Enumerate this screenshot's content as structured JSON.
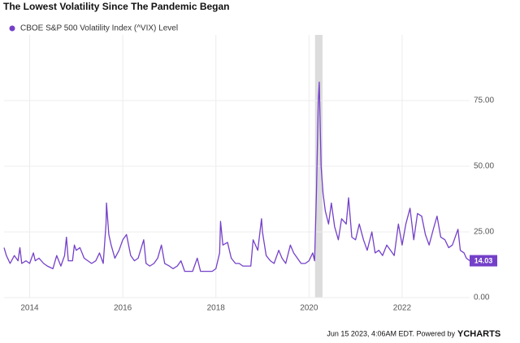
{
  "chart_data": {
    "type": "line",
    "title": "The Lowest Volatility Since The Pandemic Began",
    "x": [
      2013.45,
      2013.5,
      2013.58,
      2013.67,
      2013.75,
      2013.79,
      2013.83,
      2013.92,
      2014.0,
      2014.08,
      2014.12,
      2014.2,
      2014.3,
      2014.38,
      2014.5,
      2014.58,
      2014.67,
      2014.75,
      2014.79,
      2014.83,
      2014.92,
      2014.96,
      2015.0,
      2015.08,
      2015.17,
      2015.25,
      2015.33,
      2015.42,
      2015.5,
      2015.58,
      2015.64,
      2015.65,
      2015.7,
      2015.75,
      2015.83,
      2015.92,
      2016.0,
      2016.08,
      2016.17,
      2016.25,
      2016.33,
      2016.45,
      2016.5,
      2016.58,
      2016.67,
      2016.75,
      2016.83,
      2016.9,
      2017.0,
      2017.08,
      2017.17,
      2017.25,
      2017.33,
      2017.42,
      2017.5,
      2017.6,
      2017.67,
      2017.75,
      2017.83,
      2017.92,
      2018.0,
      2018.08,
      2018.1,
      2018.15,
      2018.25,
      2018.33,
      2018.42,
      2018.5,
      2018.58,
      2018.67,
      2018.75,
      2018.8,
      2018.9,
      2018.98,
      2019.0,
      2019.08,
      2019.17,
      2019.25,
      2019.35,
      2019.42,
      2019.5,
      2019.6,
      2019.67,
      2019.75,
      2019.83,
      2019.92,
      2020.0,
      2020.08,
      2020.12,
      2020.16,
      2020.2,
      2020.22,
      2020.26,
      2020.3,
      2020.35,
      2020.42,
      2020.48,
      2020.55,
      2020.63,
      2020.7,
      2020.8,
      2020.85,
      2020.92,
      2021.0,
      2021.08,
      2021.17,
      2021.25,
      2021.35,
      2021.42,
      2021.5,
      2021.58,
      2021.67,
      2021.75,
      2021.83,
      2021.92,
      2022.0,
      2022.08,
      2022.17,
      2022.25,
      2022.33,
      2022.42,
      2022.5,
      2022.58,
      2022.67,
      2022.75,
      2022.83,
      2022.92,
      2023.0,
      2023.08,
      2023.2,
      2023.25,
      2023.33,
      2023.38,
      2023.45
    ],
    "series": [
      {
        "name": "CBOE S&P 500 Volatility Index (^VIX) Level",
        "color": "#7440c9",
        "values": [
          19,
          16,
          13,
          16,
          14,
          19,
          13,
          14,
          13,
          17,
          14,
          15,
          13,
          12,
          11,
          16,
          12,
          16,
          23,
          14,
          14,
          20,
          18,
          19,
          15,
          14,
          13,
          14,
          17,
          13,
          28,
          36,
          24,
          20,
          15,
          18,
          22,
          24,
          16,
          14,
          15,
          22,
          13,
          12,
          13,
          15,
          20,
          13,
          12,
          11,
          12,
          14,
          10,
          10,
          10,
          15,
          10,
          10,
          10,
          10,
          11,
          17,
          29,
          20,
          21,
          15,
          13,
          13,
          12,
          12,
          12,
          22,
          18,
          30,
          25,
          16,
          14,
          13,
          18,
          15,
          13,
          20,
          17,
          15,
          13,
          13,
          14,
          17,
          14,
          40,
          75,
          82,
          50,
          40,
          33,
          28,
          36,
          27,
          22,
          30,
          28,
          38,
          23,
          22,
          28,
          22,
          18,
          25,
          17,
          18,
          16,
          20,
          18,
          16,
          28,
          20,
          28,
          34,
          22,
          32,
          31,
          24,
          20,
          26,
          31,
          23,
          22,
          19,
          20,
          26,
          18,
          17,
          15,
          14.03
        ]
      }
    ],
    "xlim": [
      2013.45,
      2023.45
    ],
    "xticks": [
      2014,
      2016,
      2018,
      2020,
      2022
    ],
    "ylim": [
      0,
      100
    ],
    "yticks": [
      {
        "value": 0,
        "label": "0.00"
      },
      {
        "value": 25,
        "label": "25.00"
      },
      {
        "value": 50,
        "label": "50.00"
      },
      {
        "value": 75,
        "label": "75.00"
      }
    ],
    "shade": [
      2020.13,
      2020.29
    ],
    "grid": true,
    "footer": "Jun 15 2023, 4:06AM EDT. Powered by",
    "logo": "YCHARTS"
  }
}
